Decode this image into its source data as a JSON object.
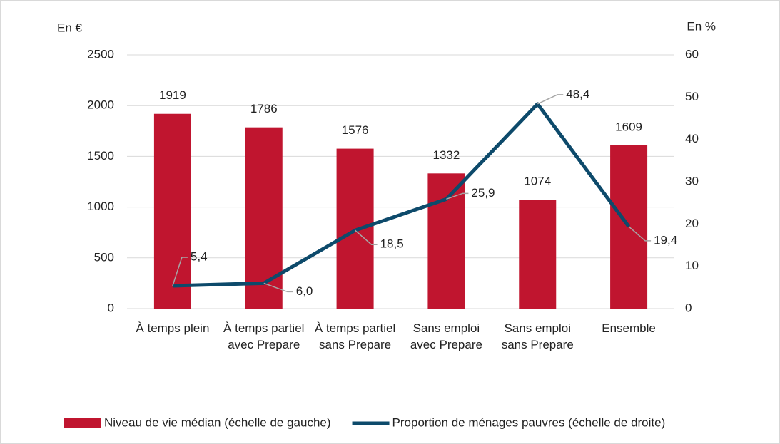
{
  "chart_data": {
    "type": "bar",
    "categories": [
      "À temps plein",
      "À temps partiel avec Prepare",
      "À temps partiel sans Prepare",
      "Sans emploi avec Prepare",
      "Sans emploi sans Prepare",
      "Ensemble"
    ],
    "series": [
      {
        "name": "Niveau de vie médian (échelle de gauche)",
        "type": "bar",
        "color": "#c0152f",
        "values": [
          1919,
          1786,
          1576,
          1332,
          1074,
          1609
        ]
      },
      {
        "name": "Proportion de ménages pauvres (échelle de droite)",
        "type": "line",
        "axis": "y2",
        "color": "#0d4a6b",
        "values": [
          5.4,
          6.0,
          18.5,
          25.9,
          48.4,
          19.4
        ],
        "value_labels": [
          "5,4",
          "6,0",
          "18,5",
          "25,9",
          "48,4",
          "19,4"
        ]
      }
    ],
    "ylabel": "En €",
    "y2label": "En %",
    "ylim": [
      0,
      2500
    ],
    "yticks": [
      0,
      500,
      1000,
      1500,
      2000,
      2500
    ],
    "y2lim": [
      0,
      60
    ],
    "y2ticks": [
      0,
      10,
      20,
      30,
      40,
      50,
      60
    ],
    "grid": true,
    "legend": "bottom"
  }
}
